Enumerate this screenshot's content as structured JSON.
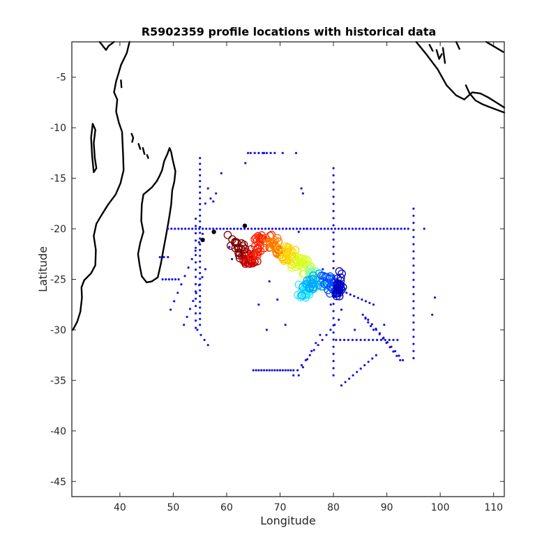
{
  "chart_data": {
    "type": "scatter",
    "title": "R5902359 profile locations with historical data",
    "xlabel": "Longitude",
    "ylabel": "Latitude",
    "xlim": [
      31,
      112
    ],
    "ylim": [
      -46.5,
      -1.5
    ],
    "xticks": [
      40,
      50,
      60,
      70,
      80,
      90,
      100,
      110
    ],
    "yticks": [
      -5,
      -10,
      -15,
      -20,
      -25,
      -30,
      -35,
      -40,
      -45
    ],
    "grid": false,
    "legend": "none",
    "colors": {
      "historical": "#1414e6",
      "coast": "#000000",
      "profile_colormap": [
        "#7f0000",
        "#c80000",
        "#ff2000",
        "#ff7a00",
        "#ffd200",
        "#d8ff20",
        "#7dffb0",
        "#30e8ff",
        "#00a8ff",
        "#0050ff",
        "#0000c0"
      ]
    },
    "series": [
      {
        "role": "historical",
        "marker": "dot",
        "tracks": [
          {
            "x": [
              49,
              94
            ],
            "y": [
              -20,
              -20
            ],
            "n": 70
          },
          {
            "x": [
              55,
              55
            ],
            "y": [
              -13,
              -29.5
            ],
            "n": 30
          },
          {
            "x": [
              54.2,
              54.2
            ],
            "y": [
              -19,
              -29.8
            ],
            "n": 16
          },
          {
            "x": [
              80,
              80
            ],
            "y": [
              -14,
              -34.5
            ],
            "n": 30
          },
          {
            "x": [
              95,
              95
            ],
            "y": [
              -18,
              -32.8
            ],
            "n": 22
          },
          {
            "x": [
              65,
              72.5
            ],
            "y": [
              -34,
              -34
            ],
            "n": 16
          },
          {
            "x": [
              64.5,
              69
            ],
            "y": [
              -12.5,
              -12.5
            ],
            "n": 7
          },
          {
            "x": [
              72.5,
              81
            ],
            "y": [
              -34.5,
              -29
            ],
            "n": 12
          },
          {
            "x": [
              80.5,
              92
            ],
            "y": [
              -31,
              -31
            ],
            "n": 16
          },
          {
            "x": [
              81.5,
              88
            ],
            "y": [
              -35.5,
              -32.5
            ],
            "n": 10
          },
          {
            "x": [
              86.5,
              93
            ],
            "y": [
              -29,
              -33
            ],
            "n": 10
          },
          {
            "x": [
              88,
              92.5
            ],
            "y": [
              -30,
              -33
            ],
            "n": 8
          },
          {
            "x": [
              81,
              87.5
            ],
            "y": [
              -26,
              -27.5
            ],
            "n": 10
          },
          {
            "x": [
              85.5,
              87.5
            ],
            "y": [
              -28.5,
              -30
            ],
            "n": 5
          },
          {
            "x": [
              48,
              51
            ],
            "y": [
              -25,
              -25
            ],
            "n": 6
          },
          {
            "x": [
              49.5,
              55.5
            ],
            "y": [
              -28,
              -20.5
            ],
            "n": 10
          },
          {
            "x": [
              52,
              56
            ],
            "y": [
              -29.5,
              -24
            ],
            "n": 8
          },
          {
            "x": [
              54.5,
              56.5
            ],
            "y": [
              -30,
              -31.5
            ],
            "n": 4
          },
          {
            "x": [
              47.5,
              49
            ],
            "y": [
              -22.8,
              -22.8
            ],
            "n": 3
          },
          {
            "x": [
              73.5,
              77.5
            ],
            "y": [
              -34.5,
              -30.5
            ],
            "n": 6
          }
        ],
        "points": {
          "x": [
            58,
            59,
            56.5,
            56,
            63.5,
            64,
            67,
            70.5,
            73,
            74,
            74.3,
            75,
            73.5,
            68,
            66,
            67.5,
            71,
            69.5,
            84,
            89.5,
            86,
            97,
            99,
            98.5,
            79.5,
            81.5,
            77,
            78,
            61,
            60.5,
            57.5,
            57
          ],
          "y": [
            -16.5,
            -14.5,
            -16,
            -17.5,
            -13.5,
            -12.5,
            -12.5,
            -12.5,
            -12.5,
            -16,
            -16.5,
            -20,
            -20.3,
            -25.2,
            -27.5,
            -30,
            -29.5,
            -27,
            -30,
            -29.5,
            -28.8,
            -20,
            -26.8,
            -28.5,
            -27.5,
            -28,
            -26,
            -24,
            -23,
            -21.8,
            -17.3,
            -17
          ]
        }
      },
      {
        "role": "profiles",
        "marker": "circle",
        "color_by": "time",
        "path": {
          "x": [
            61,
            62,
            63,
            63.5,
            64.5,
            65,
            65.5,
            66.5,
            67.5,
            68.5,
            69.5,
            70.5,
            71.5,
            72.5,
            73,
            74,
            75,
            76,
            76.5,
            75.5,
            74.5,
            74,
            75,
            76,
            77.5,
            78.5,
            79.5,
            80.5,
            81,
            81.5,
            81
          ],
          "y": [
            -21.2,
            -21.8,
            -22.4,
            -23,
            -23.1,
            -22.8,
            -22,
            -21.3,
            -21.2,
            -21.5,
            -22,
            -22.3,
            -22.5,
            -22.8,
            -23.2,
            -23.6,
            -24.1,
            -24.6,
            -25.1,
            -25.6,
            -26,
            -26.2,
            -25.9,
            -25.3,
            -25,
            -25.2,
            -25.6,
            -26,
            -26.2,
            -25.5,
            -24.5
          ]
        }
      }
    ]
  }
}
